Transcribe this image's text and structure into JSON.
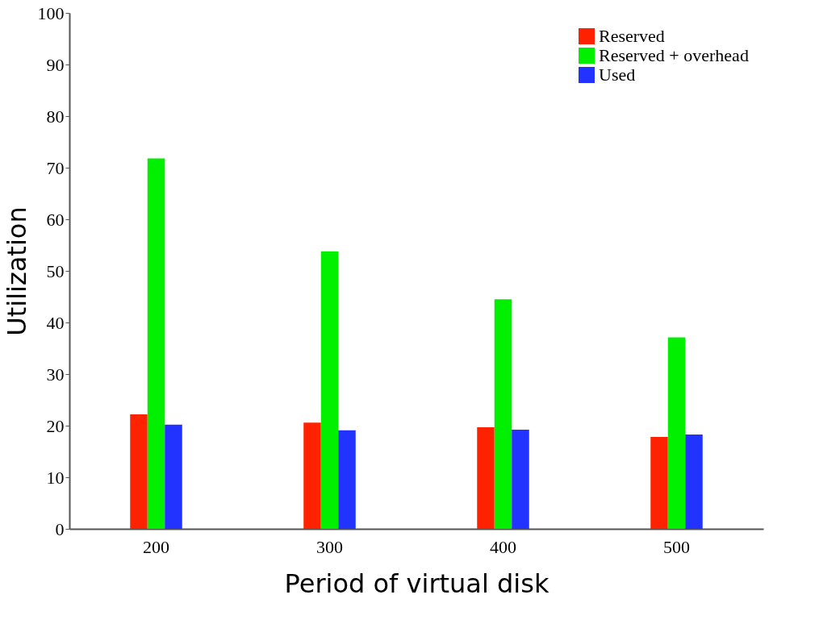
{
  "chart_data": {
    "type": "bar",
    "xlabel": "Period of virtual disk",
    "ylabel": "Utilization",
    "categories": [
      "200",
      "300",
      "400",
      "500"
    ],
    "series": [
      {
        "name": "Reserved",
        "color": "#ff2200",
        "values": [
          22.2,
          20.6,
          19.7,
          17.8
        ]
      },
      {
        "name": "Reserved + overhead",
        "color": "#00f000",
        "values": [
          71.8,
          53.8,
          44.5,
          37.1
        ]
      },
      {
        "name": "Used",
        "color": "#2233ff",
        "values": [
          20.2,
          19.1,
          19.2,
          18.3
        ]
      }
    ],
    "ylim": [
      0,
      100
    ],
    "yticks": [
      0,
      10,
      20,
      30,
      40,
      50,
      60,
      70,
      80,
      90,
      100
    ],
    "grid": false,
    "legend": "top right"
  }
}
